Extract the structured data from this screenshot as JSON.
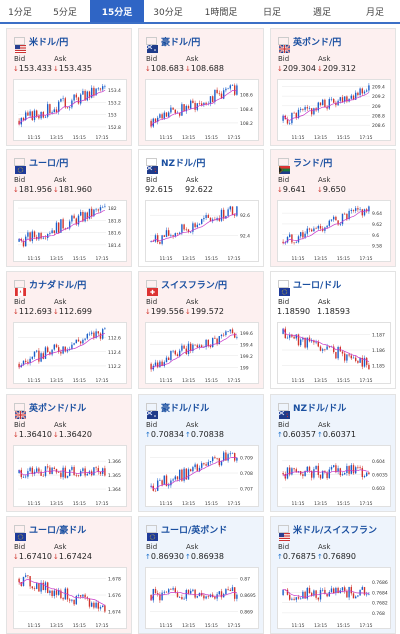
{
  "tabs": [
    {
      "label": "1分足",
      "active": false
    },
    {
      "label": "5分足",
      "active": false
    },
    {
      "label": "15分足",
      "active": true
    },
    {
      "label": "30分足",
      "active": false
    },
    {
      "label": "1時間足",
      "active": false
    },
    {
      "label": "日足",
      "active": false
    },
    {
      "label": "週足",
      "active": false
    },
    {
      "label": "月足",
      "active": false
    }
  ],
  "colors": {
    "accent": "#2f65c5",
    "down": "#d0342c",
    "up": "#1b6fcb",
    "ma": "#c837c8"
  },
  "labels": {
    "bid": "Bid",
    "ask": "Ask"
  },
  "cards": [
    {
      "pair": "米ドル/円",
      "flag": "us",
      "dir": "down",
      "bid": "153.433",
      "ask": "153.435",
      "chart": {
        "x_ticks": [
          "11:15",
          "13:15",
          "15:15",
          "17:15"
        ],
        "y_ticks": [
          "153.4",
          "153.2",
          "153",
          "152.8"
        ],
        "ylim": [
          152.75,
          153.5
        ],
        "trend": "up"
      }
    },
    {
      "pair": "豪ドル/円",
      "flag": "au",
      "dir": "down",
      "bid": "108.683",
      "ask": "108.688",
      "chart": {
        "x_ticks": [
          "11:15",
          "13:15",
          "15:15",
          "17:15"
        ],
        "y_ticks": [
          "108.6",
          "108.4",
          "108.2"
        ],
        "ylim": [
          108.1,
          108.75
        ],
        "trend": "up"
      }
    },
    {
      "pair": "英ポンド/円",
      "flag": "gb",
      "dir": "down",
      "bid": "209.304",
      "ask": "209.312",
      "chart": {
        "x_ticks": [
          "11:15",
          "13:15",
          "15:15",
          "17:15"
        ],
        "y_ticks": [
          "209.4",
          "209.2",
          "209",
          "208.8",
          "208.6"
        ],
        "ylim": [
          208.5,
          209.45
        ],
        "trend": "up"
      }
    },
    {
      "pair": "ユーロ/円",
      "flag": "eu",
      "dir": "down",
      "bid": "181.956",
      "ask": "181.960",
      "chart": {
        "x_ticks": [
          "11:15",
          "13:15",
          "15:15",
          "17:15"
        ],
        "y_ticks": [
          "182",
          "181.8",
          "181.6",
          "181.4"
        ],
        "ylim": [
          181.3,
          182.05
        ],
        "trend": "up"
      }
    },
    {
      "pair": "NZドル/円",
      "flag": "nz",
      "dir": "flat",
      "bid": "92.615",
      "ask": "92.622",
      "chart": {
        "x_ticks": [
          "11:15",
          "13:15",
          "15:15",
          "17:15"
        ],
        "y_ticks": [
          "92.6",
          "92.4"
        ],
        "ylim": [
          92.25,
          92.7
        ],
        "trend": "up"
      }
    },
    {
      "pair": "ランド/円",
      "flag": "za",
      "dir": "down",
      "bid": "9.641",
      "ask": "9.650",
      "chart": {
        "x_ticks": [
          "11:15",
          "13:15",
          "15:15",
          "17:15"
        ],
        "y_ticks": [
          "9.64",
          "9.62",
          "9.6",
          "9.58"
        ],
        "ylim": [
          9.57,
          9.655
        ],
        "trend": "up"
      }
    },
    {
      "pair": "カナダドル/円",
      "flag": "ca",
      "dir": "down",
      "bid": "112.693",
      "ask": "112.699",
      "chart": {
        "x_ticks": [
          "11:15",
          "13:15",
          "15:15",
          "17:15"
        ],
        "y_ticks": [
          "112.6",
          "112.4",
          "112.2"
        ],
        "ylim": [
          112.1,
          112.75
        ],
        "trend": "up"
      }
    },
    {
      "pair": "スイスフラン/円",
      "flag": "ch",
      "dir": "down",
      "bid": "199.556",
      "ask": "199.572",
      "chart": {
        "x_ticks": [
          "11:15",
          "13:15",
          "15:15",
          "17:15"
        ],
        "y_ticks": [
          "199.6",
          "199.4",
          "199.2",
          "199"
        ],
        "ylim": [
          198.9,
          199.7
        ],
        "trend": "up"
      }
    },
    {
      "pair": "ユーロ/ドル",
      "flag": "eu",
      "dir": "flat",
      "bid": "1.18590",
      "ask": "1.18593",
      "chart": {
        "x_ticks": [
          "11:15",
          "13:15",
          "15:15",
          "17:15"
        ],
        "y_ticks": [
          "1.187",
          "1.186",
          "1.185"
        ],
        "ylim": [
          1.1845,
          1.1875
        ],
        "trend": "down"
      }
    },
    {
      "pair": "英ポンド/ドル",
      "flag": "gb",
      "dir": "down",
      "bid": "1.36410",
      "ask": "1.36420",
      "chart": {
        "x_ticks": [
          "11:15",
          "13:15",
          "15:15",
          "17:15"
        ],
        "y_ticks": [
          "1.366",
          "1.365",
          "1.364"
        ],
        "ylim": [
          1.3635,
          1.3668
        ],
        "trend": "flat"
      }
    },
    {
      "pair": "豪ドル/ドル",
      "flag": "au",
      "dir": "up",
      "bid": "0.70834",
      "ask": "0.70838",
      "chart": {
        "x_ticks": [
          "11:15",
          "13:15",
          "15:15",
          "17:15"
        ],
        "y_ticks": [
          "0.709",
          "0.708",
          "0.707"
        ],
        "ylim": [
          0.7065,
          0.7095
        ],
        "trend": "up"
      }
    },
    {
      "pair": "NZドル/ドル",
      "flag": "nz",
      "dir": "up",
      "bid": "0.60357",
      "ask": "0.60371",
      "chart": {
        "x_ticks": [
          "11:15",
          "13:15",
          "15:15",
          "17:15"
        ],
        "y_ticks": [
          "0.604",
          "0.6035",
          "0.603"
        ],
        "ylim": [
          0.6027,
          0.6044
        ],
        "trend": "flat"
      }
    },
    {
      "pair": "ユーロ/豪ドル",
      "flag": "eu",
      "dir": "down",
      "bid": "1.67410",
      "ask": "1.67424",
      "chart": {
        "x_ticks": [
          "11:15",
          "13:15",
          "15:15",
          "17:15"
        ],
        "y_ticks": [
          "1.678",
          "1.676",
          "1.674"
        ],
        "ylim": [
          1.6732,
          1.6788
        ],
        "trend": "down"
      }
    },
    {
      "pair": "ユーロ/英ポンド",
      "flag": "eu",
      "dir": "up",
      "bid": "0.86930",
      "ask": "0.86938",
      "chart": {
        "x_ticks": [
          "11:15",
          "13:15",
          "15:15",
          "17:15"
        ],
        "y_ticks": [
          "0.87",
          "0.8695",
          "0.869"
        ],
        "ylim": [
          0.8688,
          0.8702
        ],
        "trend": "flat"
      }
    },
    {
      "pair": "米ドル/スイスフラン",
      "flag": "us",
      "dir": "up",
      "bid": "0.76875",
      "ask": "0.76890",
      "chart": {
        "x_ticks": [
          "11:15",
          "13:15",
          "15:15",
          "17:15"
        ],
        "y_ticks": [
          "0.7686",
          "0.7684",
          "0.7682",
          "0.768"
        ],
        "ylim": [
          0.7679,
          0.7688
        ],
        "trend": "flat"
      }
    }
  ]
}
